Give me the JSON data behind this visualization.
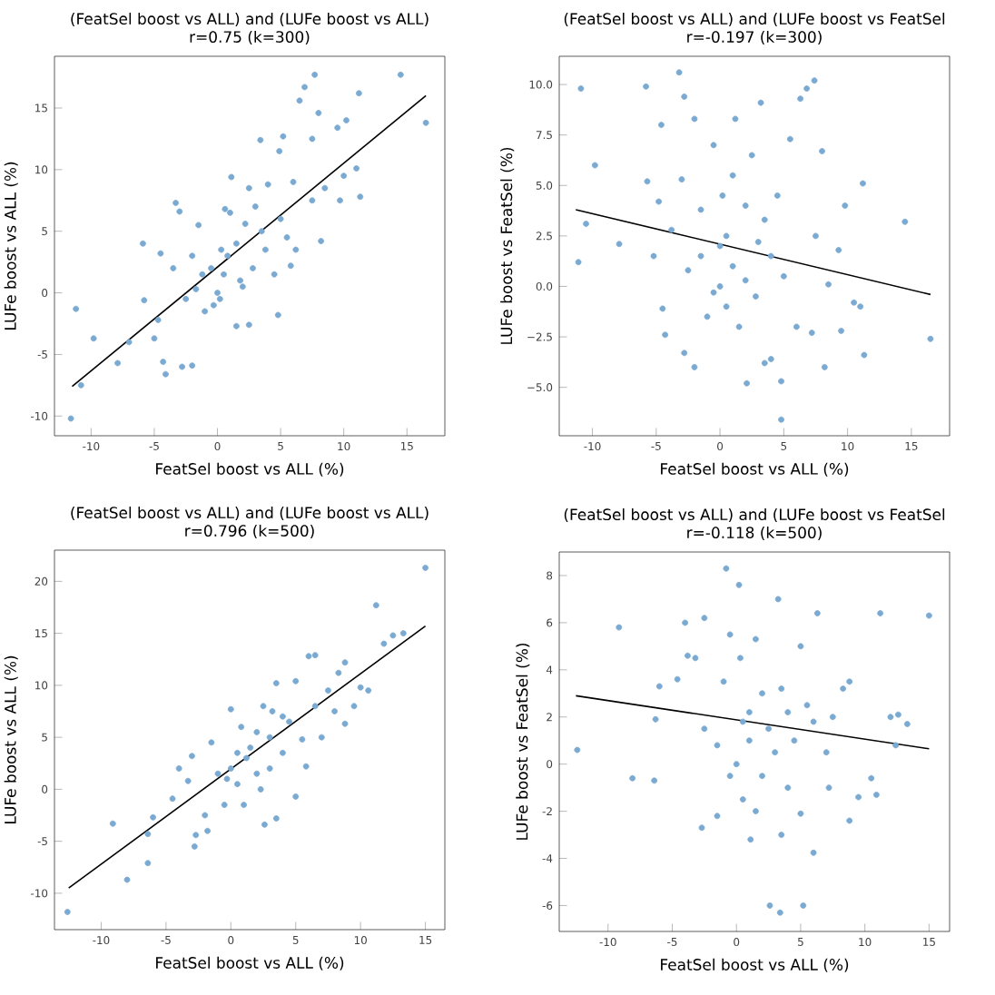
{
  "chart_data": [
    {
      "type": "scatter",
      "title": "(FeatSel boost vs ALL) and (LUFe boost vs ALL)",
      "subtitle": "r=0.75    (k=300)",
      "xlabel": "FeatSel boost vs ALL (%)",
      "ylabel": "LUFe boost vs ALL (%)",
      "xlim": [
        -12.9,
        18.0
      ],
      "ylim": [
        -11.6,
        19.2
      ],
      "xticks": [
        -10,
        -5,
        0,
        5,
        10,
        15
      ],
      "yticks": [
        -10,
        -5,
        0,
        5,
        10,
        15
      ],
      "series": [
        {
          "marker": "circle",
          "color": "#7aaad2",
          "x": [
            -11.6,
            -10.8,
            -11.2,
            -9.8,
            -7.9,
            -7.0,
            -5.9,
            -5.8,
            -5.0,
            -4.7,
            -4.5,
            -4.3,
            -4.1,
            -3.5,
            -3.3,
            -3.0,
            -2.8,
            -2.0,
            -2.5,
            -2.0,
            -1.5,
            -1.2,
            -1.0,
            -0.5,
            0.0,
            0.2,
            0.5,
            0.8,
            1.0,
            1.1,
            1.5,
            2.0,
            2.5,
            2.8,
            3.0,
            3.4,
            3.5,
            4.0,
            4.5,
            4.8,
            4.9,
            5.2,
            5.0,
            5.5,
            6.0,
            6.2,
            6.5,
            6.9,
            7.7,
            7.5,
            7.5,
            8.0,
            8.2,
            8.5,
            9.5,
            9.7,
            10.2,
            10.0,
            11.2,
            11.3,
            11.0,
            14.5,
            16.5,
            1.5,
            0.3,
            -0.3,
            2.2,
            3.8,
            2.5,
            1.8,
            -1.7,
            0.6,
            5.8
          ],
          "values": [
            -10.2,
            -7.5,
            -1.3,
            -3.7,
            -5.7,
            -4.0,
            4.0,
            -0.6,
            -3.7,
            -2.2,
            3.2,
            -5.6,
            -6.6,
            2.0,
            7.3,
            6.6,
            -6.0,
            -5.9,
            -0.5,
            3.0,
            5.5,
            1.5,
            -1.5,
            2.0,
            0.0,
            -0.5,
            1.5,
            3.0,
            6.5,
            9.4,
            4.0,
            0.5,
            -2.6,
            2.0,
            7.0,
            12.4,
            5.0,
            8.8,
            1.5,
            -1.8,
            11.5,
            12.7,
            6.0,
            4.5,
            9.0,
            3.5,
            15.6,
            16.7,
            17.7,
            12.5,
            7.5,
            14.6,
            4.2,
            8.5,
            13.4,
            7.5,
            14.0,
            9.5,
            16.2,
            7.8,
            10.1,
            17.7,
            13.8,
            -2.7,
            3.5,
            -1.0,
            5.6,
            3.5,
            8.5,
            1.0,
            0.3,
            6.8,
            2.2
          ]
        },
        {
          "type": "line",
          "marker": "none",
          "color": "#000000",
          "x": [
            -11.5,
            16.5
          ],
          "values": [
            -7.6,
            16.0
          ]
        }
      ]
    },
    {
      "type": "scatter",
      "title": "(FeatSel boost vs ALL) and (LUFe boost vs FeatSel",
      "subtitle": "r=-0.197    (k=300)",
      "xlabel": "FeatSel boost vs ALL (%)",
      "ylabel": "LUFe boost vs FeatSel (%)",
      "xlim": [
        -12.6,
        18.0
      ],
      "ylim": [
        -7.4,
        11.4
      ],
      "xticks": [
        -10,
        -5,
        0,
        5,
        10,
        15
      ],
      "yticks": [
        {
          "value": -5,
          "label": "−5.0"
        },
        {
          "value": -2.5,
          "label": "−2.5"
        },
        {
          "value": 0,
          "label": "0.0"
        },
        {
          "value": 2.5,
          "label": "2.5"
        },
        {
          "value": 5,
          "label": "5.0"
        },
        {
          "value": 7.5,
          "label": "7.5"
        },
        {
          "value": 10,
          "label": "10.0"
        }
      ],
      "series": [
        {
          "marker": "circle",
          "color": "#7aaad2",
          "x": [
            -11.1,
            -10.9,
            -10.5,
            -9.8,
            -7.9,
            -5.8,
            -5.7,
            -5.2,
            -4.8,
            -4.6,
            -4.3,
            -4.5,
            -3.8,
            -3.2,
            -3.0,
            -2.8,
            -2.8,
            -2.5,
            -2.0,
            -2.0,
            -1.5,
            -1.0,
            -0.5,
            0.0,
            0.0,
            0.2,
            0.5,
            1.0,
            1.2,
            1.5,
            2.0,
            2.1,
            2.5,
            2.8,
            3.2,
            3.5,
            3.5,
            4.0,
            4.0,
            4.5,
            4.8,
            4.8,
            5.5,
            5.0,
            6.0,
            6.3,
            6.8,
            7.4,
            7.5,
            7.2,
            8.0,
            8.2,
            8.5,
            9.3,
            9.5,
            9.8,
            10.5,
            11.2,
            11.3,
            11.0,
            14.5,
            16.5,
            1.0,
            -0.5,
            3.0,
            2.0,
            -1.5,
            0.5
          ],
          "values": [
            1.2,
            9.8,
            3.1,
            6.0,
            2.1,
            9.9,
            5.2,
            1.5,
            4.2,
            8.0,
            -2.4,
            -1.1,
            2.8,
            10.6,
            5.3,
            9.4,
            -3.3,
            0.8,
            -4.0,
            8.3,
            3.8,
            -1.5,
            7.0,
            2.0,
            0.0,
            4.5,
            -1.0,
            5.5,
            8.3,
            -2.0,
            0.3,
            -4.8,
            6.5,
            -0.5,
            9.1,
            -3.8,
            3.3,
            -3.6,
            1.5,
            4.5,
            -4.7,
            -6.6,
            7.3,
            0.5,
            -2.0,
            9.3,
            9.8,
            10.2,
            2.5,
            -2.3,
            6.7,
            -4.0,
            0.1,
            1.8,
            -2.2,
            4.0,
            -0.8,
            5.1,
            -3.4,
            -1.0,
            3.2,
            -2.6,
            1.0,
            -0.3,
            2.2,
            4.0,
            1.5,
            2.5
          ]
        },
        {
          "type": "line",
          "marker": "none",
          "color": "#000000",
          "x": [
            -11.3,
            16.5
          ],
          "values": [
            3.8,
            -0.4
          ]
        }
      ]
    },
    {
      "type": "scatter",
      "title": "(FeatSel boost vs ALL) and (LUFe boost vs ALL)",
      "subtitle": "r=0.796    (k=500)",
      "xlabel": "FeatSel boost vs ALL (%)",
      "ylabel": "LUFe boost vs ALL (%)",
      "xlim": [
        -13.6,
        16.5
      ],
      "ylim": [
        -13.5,
        23.0
      ],
      "xticks": [
        -10,
        -5,
        0,
        5,
        10,
        15
      ],
      "yticks": [
        -10,
        -5,
        0,
        5,
        10,
        15,
        20
      ],
      "series": [
        {
          "marker": "circle",
          "color": "#7aaad2",
          "x": [
            -12.6,
            -8.0,
            -9.1,
            -6.4,
            -6.4,
            -6.0,
            -4.5,
            -4.0,
            -3.3,
            -3.0,
            -2.8,
            -2.7,
            -2.0,
            -1.8,
            -1.5,
            -1.0,
            -0.5,
            0.0,
            0.0,
            0.5,
            0.8,
            1.0,
            1.5,
            2.0,
            2.6,
            2.5,
            3.0,
            3.5,
            3.5,
            4.0,
            4.5,
            5.0,
            5.0,
            5.5,
            6.0,
            6.5,
            6.5,
            7.0,
            7.5,
            8.0,
            8.3,
            8.8,
            8.8,
            9.5,
            10.0,
            10.6,
            11.2,
            11.8,
            12.5,
            13.3,
            15.0,
            0.5,
            2.0,
            3.0,
            -0.3,
            1.2,
            4.0,
            2.3,
            5.8,
            3.2
          ],
          "values": [
            -11.8,
            -8.7,
            -3.3,
            -7.1,
            -4.3,
            -2.7,
            -0.9,
            2.0,
            0.8,
            3.2,
            -5.5,
            -4.4,
            -2.5,
            -4.0,
            4.5,
            1.5,
            -1.5,
            7.7,
            2.0,
            0.5,
            6.0,
            -1.5,
            4.0,
            1.5,
            -3.4,
            8.0,
            5.0,
            -2.8,
            10.2,
            3.5,
            6.5,
            -0.7,
            10.4,
            4.8,
            12.8,
            12.9,
            8.0,
            5.0,
            9.5,
            7.5,
            11.2,
            12.2,
            6.3,
            8.0,
            9.8,
            9.5,
            17.7,
            14.0,
            14.8,
            15.0,
            21.3,
            3.5,
            5.5,
            2.0,
            1.0,
            3.0,
            7.0,
            0.0,
            2.2,
            7.5
          ]
        },
        {
          "type": "line",
          "marker": "none",
          "color": "#000000",
          "x": [
            -12.5,
            15.0
          ],
          "values": [
            -9.5,
            15.7
          ]
        }
      ]
    },
    {
      "type": "scatter",
      "title": "(FeatSel boost vs ALL) and (LUFe boost vs FeatSel",
      "subtitle": "r=-0.118    (k=500)",
      "xlabel": "FeatSel boost vs ALL (%)",
      "ylabel": "LUFe boost vs FeatSel (%)",
      "xlim": [
        -13.8,
        16.6
      ],
      "ylim": [
        -7.1,
        9.0
      ],
      "xticks": [
        -10,
        -5,
        0,
        5,
        10,
        15
      ],
      "yticks": [
        -6,
        -4,
        -2,
        0,
        2,
        4,
        6,
        8
      ],
      "series": [
        {
          "marker": "circle",
          "color": "#7aaad2",
          "x": [
            -12.4,
            -9.15,
            -8.1,
            -6.4,
            -6.3,
            -6.0,
            -4.6,
            -4.0,
            -3.8,
            -3.2,
            -2.7,
            -2.5,
            -2.5,
            -1.5,
            -1.5,
            -1.0,
            -0.5,
            -0.8,
            0.2,
            0.0,
            0.3,
            0.5,
            1.1,
            1.0,
            1.5,
            2.0,
            2.5,
            2.6,
            3.4,
            3.25,
            3.5,
            3.5,
            4.0,
            4.5,
            5.0,
            5.2,
            5.0,
            5.5,
            6.0,
            6.3,
            6.0,
            7.0,
            7.2,
            7.5,
            8.3,
            8.8,
            8.8,
            9.5,
            10.5,
            10.9,
            11.2,
            12.0,
            12.6,
            12.4,
            13.3,
            15.0,
            1.0,
            2.0,
            -0.5,
            3.0,
            1.5,
            4.0,
            0.5
          ],
          "values": [
            0.6,
            5.8,
            -0.6,
            -0.7,
            1.9,
            3.3,
            3.6,
            6.0,
            4.6,
            4.5,
            -2.7,
            1.5,
            6.2,
            -2.2,
            0.8,
            3.5,
            5.5,
            8.3,
            7.6,
            0.0,
            4.5,
            -1.5,
            -3.2,
            2.2,
            5.3,
            -0.5,
            1.5,
            -6.0,
            -6.3,
            7.0,
            -3.0,
            3.2,
            -1.0,
            1.0,
            5.0,
            -6.0,
            -2.1,
            2.5,
            -3.76,
            6.4,
            1.8,
            0.5,
            -1.0,
            2.0,
            3.2,
            3.5,
            -2.4,
            -1.4,
            -0.6,
            -1.3,
            6.4,
            2.0,
            2.1,
            0.8,
            1.7,
            6.3,
            1.0,
            3.0,
            -0.5,
            0.5,
            -2.0,
            2.2,
            1.8
          ]
        },
        {
          "type": "line",
          "marker": "none",
          "color": "#000000",
          "x": [
            -12.5,
            15.0
          ],
          "values": [
            2.9,
            0.65
          ]
        }
      ]
    }
  ]
}
